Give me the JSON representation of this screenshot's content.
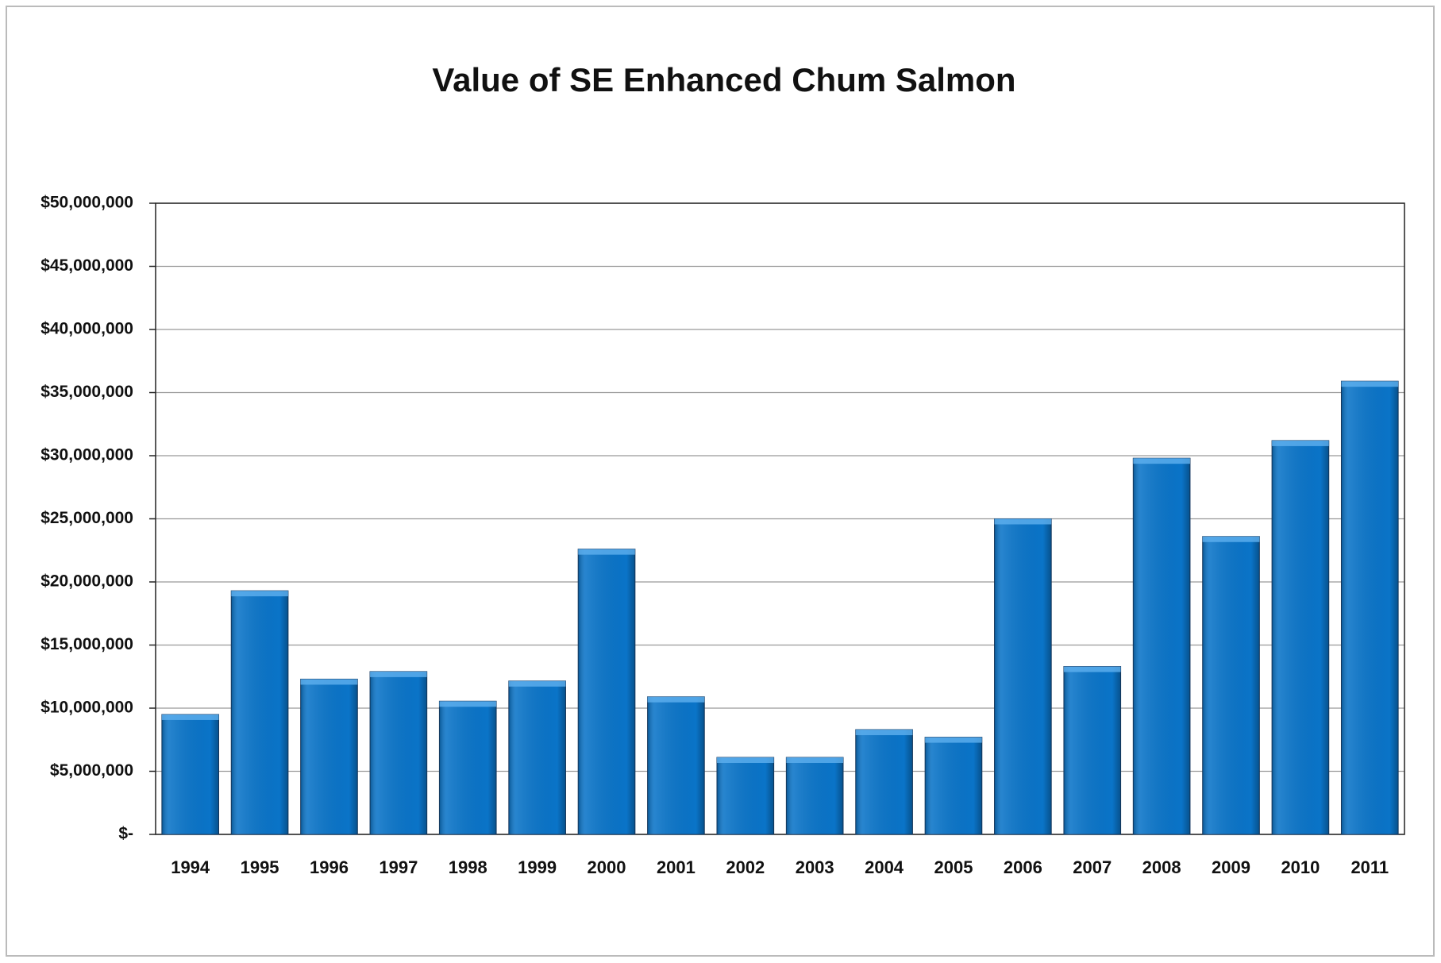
{
  "chart_data": {
    "type": "bar",
    "title": "Value of SE Enhanced Chum Salmon",
    "categories": [
      "1994",
      "1995",
      "1996",
      "1997",
      "1998",
      "1999",
      "2000",
      "2001",
      "2002",
      "2003",
      "2004",
      "2005",
      "2006",
      "2007",
      "2008",
      "2009",
      "2010",
      "2011"
    ],
    "values": [
      9500000,
      19300000,
      12300000,
      12900000,
      10550000,
      12150000,
      22600000,
      10900000,
      6100000,
      6100000,
      8300000,
      7700000,
      25000000,
      13300000,
      29800000,
      23600000,
      31200000,
      35900000
    ],
    "color": "#0a74c8",
    "ylim": [
      0,
      50000000
    ],
    "yticks": [
      {
        "value": 0,
        "label": "$-"
      },
      {
        "value": 5000000,
        "label": "$5,000,000"
      },
      {
        "value": 10000000,
        "label": "$10,000,000"
      },
      {
        "value": 15000000,
        "label": "$15,000,000"
      },
      {
        "value": 20000000,
        "label": "$20,000,000"
      },
      {
        "value": 25000000,
        "label": "$25,000,000"
      },
      {
        "value": 30000000,
        "label": "$30,000,000"
      },
      {
        "value": 35000000,
        "label": "$35,000,000"
      },
      {
        "value": 40000000,
        "label": "$40,000,000"
      },
      {
        "value": 45000000,
        "label": "$45,000,000"
      },
      {
        "value": 50000000,
        "label": "$50,000,000"
      }
    ],
    "grid": true
  }
}
